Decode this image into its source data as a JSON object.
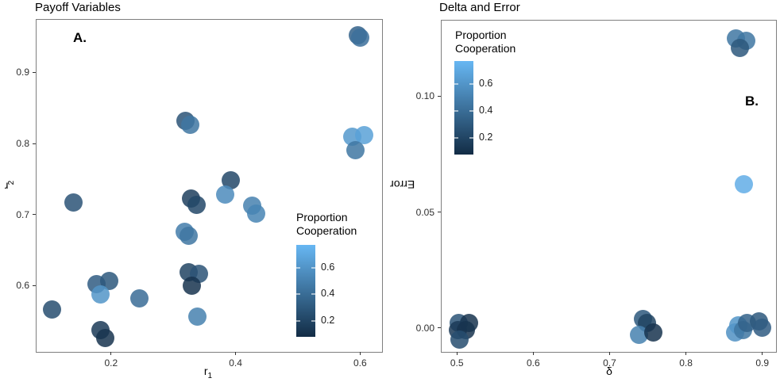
{
  "figure": {
    "background": "#ffffff"
  },
  "colors": {
    "scale_low": "#122c45",
    "scale_high": "#67b7f3",
    "panel_border": "#7f7f7f",
    "tick_text": "#303030"
  },
  "chart_data": [
    {
      "type": "scatter",
      "title": "Payoff Variables",
      "panel_label": "A.",
      "xlabel": "r",
      "xlabel_sub": "1",
      "ylabel": "r",
      "ylabel_sub": "2",
      "xlim": [
        0.079,
        0.634
      ],
      "ylim": [
        0.508,
        0.975
      ],
      "xticks": {
        "values": [
          0.2,
          0.4,
          0.6
        ],
        "labels": [
          "0.2",
          "0.4",
          "0.6"
        ]
      },
      "yticks": {
        "values": [
          0.6,
          0.7,
          0.8,
          0.9
        ],
        "labels": [
          "0.6",
          "0.7",
          "0.8",
          "0.9"
        ]
      },
      "legend": {
        "title_line1": "Proportion",
        "title_line2": "Cooperation",
        "position": "inside-right",
        "scale_range": [
          0.08,
          0.77
        ],
        "ticks": [
          {
            "value": 0.6,
            "label": "0.6"
          },
          {
            "value": 0.4,
            "label": "0.4"
          },
          {
            "value": 0.2,
            "label": "0.2"
          }
        ]
      },
      "points": [
        {
          "x": 0.596,
          "y": 0.952,
          "c": 0.35
        },
        {
          "x": 0.6,
          "y": 0.949,
          "c": 0.42
        },
        {
          "x": 0.319,
          "y": 0.832,
          "c": 0.28
        },
        {
          "x": 0.327,
          "y": 0.826,
          "c": 0.45
        },
        {
          "x": 0.587,
          "y": 0.809,
          "c": 0.62
        },
        {
          "x": 0.606,
          "y": 0.812,
          "c": 0.66
        },
        {
          "x": 0.592,
          "y": 0.79,
          "c": 0.45
        },
        {
          "x": 0.392,
          "y": 0.748,
          "c": 0.22
        },
        {
          "x": 0.383,
          "y": 0.728,
          "c": 0.55
        },
        {
          "x": 0.328,
          "y": 0.722,
          "c": 0.18
        },
        {
          "x": 0.337,
          "y": 0.714,
          "c": 0.22
        },
        {
          "x": 0.427,
          "y": 0.712,
          "c": 0.5
        },
        {
          "x": 0.433,
          "y": 0.701,
          "c": 0.52
        },
        {
          "x": 0.139,
          "y": 0.717,
          "c": 0.28
        },
        {
          "x": 0.318,
          "y": 0.676,
          "c": 0.48
        },
        {
          "x": 0.325,
          "y": 0.67,
          "c": 0.45
        },
        {
          "x": 0.177,
          "y": 0.602,
          "c": 0.32
        },
        {
          "x": 0.197,
          "y": 0.607,
          "c": 0.3
        },
        {
          "x": 0.183,
          "y": 0.588,
          "c": 0.6
        },
        {
          "x": 0.105,
          "y": 0.566,
          "c": 0.25
        },
        {
          "x": 0.245,
          "y": 0.582,
          "c": 0.4
        },
        {
          "x": 0.324,
          "y": 0.619,
          "c": 0.2
        },
        {
          "x": 0.341,
          "y": 0.617,
          "c": 0.28
        },
        {
          "x": 0.33,
          "y": 0.6,
          "c": 0.12
        },
        {
          "x": 0.339,
          "y": 0.556,
          "c": 0.5
        },
        {
          "x": 0.183,
          "y": 0.537,
          "c": 0.15
        },
        {
          "x": 0.19,
          "y": 0.526,
          "c": 0.12
        }
      ]
    },
    {
      "type": "scatter",
      "title": "Delta and Error",
      "panel_label": "B.",
      "xlabel": "δ",
      "xlabel_sub": "",
      "ylabel": "Error",
      "ylabel_sub": "",
      "xlim": [
        0.479,
        0.917
      ],
      "ylim": [
        -0.01,
        0.133
      ],
      "xticks": {
        "values": [
          0.5,
          0.6,
          0.7,
          0.8,
          0.9
        ],
        "labels": [
          "0.5",
          "0.6",
          "0.7",
          "0.8",
          "0.9"
        ]
      },
      "yticks": {
        "values": [
          0.0,
          0.05,
          0.1
        ],
        "labels": [
          "0.00",
          "0.05",
          "0.10"
        ]
      },
      "legend": {
        "title_line1": "Proportion",
        "title_line2": "Cooperation",
        "position": "inside-top-left",
        "scale_range": [
          0.08,
          0.77
        ],
        "ticks": [
          {
            "value": 0.6,
            "label": "0.6"
          },
          {
            "value": 0.4,
            "label": "0.4"
          },
          {
            "value": 0.2,
            "label": "0.2"
          }
        ]
      },
      "points": [
        {
          "x": 0.866,
          "y": 0.125,
          "c": 0.45
        },
        {
          "x": 0.879,
          "y": 0.124,
          "c": 0.45
        },
        {
          "x": 0.871,
          "y": 0.121,
          "c": 0.3
        },
        {
          "x": 0.876,
          "y": 0.062,
          "c": 0.72
        },
        {
          "x": 0.502,
          "y": 0.002,
          "c": 0.28
        },
        {
          "x": 0.516,
          "y": 0.002,
          "c": 0.12
        },
        {
          "x": 0.501,
          "y": -0.001,
          "c": 0.15
        },
        {
          "x": 0.512,
          "y": -0.001,
          "c": 0.12
        },
        {
          "x": 0.503,
          "y": -0.005,
          "c": 0.25
        },
        {
          "x": 0.744,
          "y": 0.004,
          "c": 0.3
        },
        {
          "x": 0.749,
          "y": 0.002,
          "c": 0.2
        },
        {
          "x": 0.739,
          "y": -0.003,
          "c": 0.5
        },
        {
          "x": 0.757,
          "y": -0.002,
          "c": 0.12
        },
        {
          "x": 0.864,
          "y": -0.002,
          "c": 0.58
        },
        {
          "x": 0.869,
          "y": 0.001,
          "c": 0.6
        },
        {
          "x": 0.875,
          "y": -0.001,
          "c": 0.45
        },
        {
          "x": 0.88,
          "y": 0.002,
          "c": 0.35
        },
        {
          "x": 0.896,
          "y": 0.003,
          "c": 0.3
        },
        {
          "x": 0.9,
          "y": 0.0,
          "c": 0.32
        }
      ]
    }
  ]
}
